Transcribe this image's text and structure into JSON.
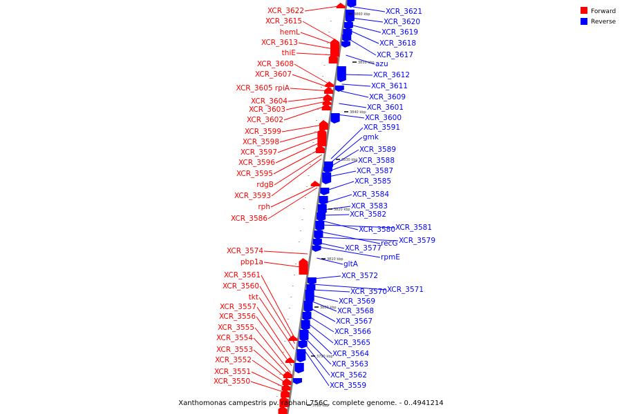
{
  "caption": "Xanthomonas campestris pv. raphani 756C, complete genome. - 0..4941214",
  "legend": [
    {
      "label": "Forward",
      "color": "#ff0000"
    },
    {
      "label": "Reverse",
      "color": "#0000ff"
    }
  ],
  "colors": {
    "forward": "#ff0000",
    "reverse": "#0000ff",
    "axis": "#808080"
  },
  "scale_ticks": [
    "3860 kbp",
    "3850 kbp",
    "3840 kbp",
    "3830 kbp",
    "3820 kbp",
    "3810 kbp",
    "3800 kbp",
    "3790 kbp",
    "3780 kbp"
  ],
  "left_labels": [
    "XCR_3622",
    "XCR_3615",
    "hemL",
    "XCR_3613",
    "thiE",
    "XCR_3608",
    "XCR_3607",
    "XCR_3605 rpiA",
    "XCR_3604",
    "XCR_3603",
    "XCR_3602",
    "XCR_3599",
    "XCR_3598",
    "XCR_3597",
    "XCR_3596",
    "XCR_3595",
    "rdgB",
    "XCR_3593",
    "rph",
    "XCR_3586",
    "XCR_3574",
    "pbp1a",
    "XCR_3561",
    "XCR_3560",
    "tkt",
    "XCR_3557",
    "XCR_3556",
    "XCR_3555",
    "XCR_3554",
    "XCR_3553",
    "XCR_3552",
    "XCR_3551",
    "XCR_3550"
  ],
  "right_labels": [
    "XCR_3621",
    "XCR_3620",
    "XCR_3619",
    "XCR_3618",
    "XCR_3617",
    "azu",
    "XCR_3612",
    "XCR_3611",
    "XCR_3609",
    "XCR_3601",
    "XCR_3600",
    "XCR_3591",
    "gmk",
    "XCR_3589",
    "XCR_3588",
    "XCR_3587",
    "XCR_3585",
    "XCR_3584",
    "XCR_3583",
    "XCR_3582",
    "XCR_3580",
    "XCR_3581",
    "recG",
    "XCR_3579",
    "XCR_3577",
    "rpmE",
    "gltA",
    "XCR_3572",
    "XCR_3571",
    "XCR_3570",
    "XCR_3569",
    "XCR_3568",
    "XCR_3567",
    "XCR_3566",
    "XCR_3565",
    "XCR_3564",
    "XCR_3563",
    "XCR_3562",
    "XCR_3559"
  ]
}
